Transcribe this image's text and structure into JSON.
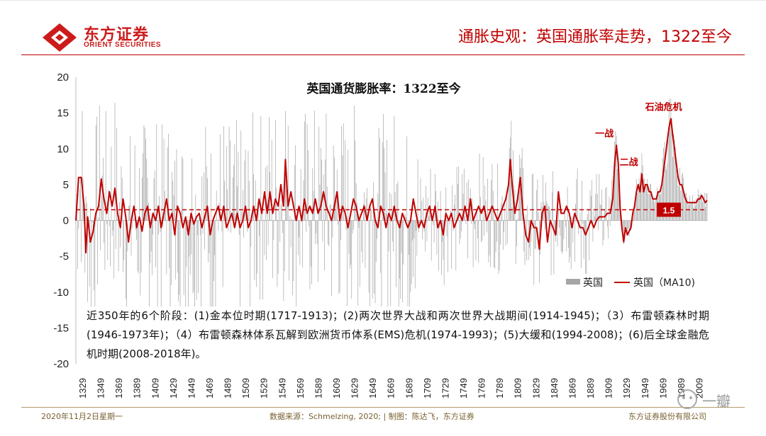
{
  "header": {
    "logo_cn": "东方证券",
    "logo_en": "ORIENT SECURITIES",
    "slide_title": "通胀史观：英国通胀率走势，1322至今"
  },
  "note": {
    "text": "近350年的6个阶段：(1)金本位时期(1717-1913)；(2)两次世界大战和两次世界大战期间(1914-1945)；（3）布雷顿森林时期(1946-1973年)；（4）布雷顿森林体系瓦解到欧洲货币体系(EMS)危机(1974-1993)；(5)大缓和(1994-2008)；(6)后全球金融危机时期(2008-2018年)。"
  },
  "footer": {
    "date": "2020年11月2日星期一",
    "source": "数据来源：Schmelzing, 2020; | 制图：陈达飞，东方证券",
    "company": "东方证券股份有限公司"
  },
  "watermark": {
    "text": "一瓣"
  },
  "colors": {
    "brand_red": "#cc1b1b",
    "series_line": "#c00000",
    "bars": "#a6a6a6",
    "ref_line": "#c00000"
  },
  "chart_data": {
    "type": "bar",
    "title": "英国通货膨胀率：1322至今",
    "xlabel": "",
    "ylabel": "",
    "ylim": [
      -20,
      20
    ],
    "y_ticks": [
      20,
      15,
      10,
      5,
      0,
      -5,
      -10,
      -15,
      -20
    ],
    "x_range": [
      1322,
      2018
    ],
    "x_tick_labels": [
      "1329",
      "1349",
      "1369",
      "1389",
      "1409",
      "1429",
      "1449",
      "1469",
      "1489",
      "1509",
      "1529",
      "1549",
      "1569",
      "1589",
      "1609",
      "1629",
      "1649",
      "1669",
      "1689",
      "1709",
      "1729",
      "1749",
      "1769",
      "1789",
      "1809",
      "1829",
      "1849",
      "1869",
      "1889",
      "1909",
      "1929",
      "1949",
      "1969",
      "1989",
      "2009"
    ],
    "legend": [
      "英国",
      "英国（MA10)"
    ],
    "legend_position": "bottom-right",
    "reference_line": {
      "value": 1.5,
      "label": "1.5"
    },
    "annotations": [
      {
        "text": "一战",
        "year": 1918,
        "value": 10.5
      },
      {
        "text": "二战",
        "year": 1945,
        "value": 6.5
      },
      {
        "text": "石油危机",
        "year": 1977,
        "value": 14.2
      }
    ],
    "series": [
      {
        "name": "英国（MA10)",
        "type": "line",
        "points": [
          [
            1322,
            0
          ],
          [
            1325,
            6
          ],
          [
            1328,
            6
          ],
          [
            1331,
            2
          ],
          [
            1333,
            -4.5
          ],
          [
            1335,
            0.5
          ],
          [
            1338,
            -3
          ],
          [
            1341,
            -1.5
          ],
          [
            1344,
            1
          ],
          [
            1347,
            2
          ],
          [
            1350,
            5.8
          ],
          [
            1353,
            3
          ],
          [
            1356,
            1
          ],
          [
            1359,
            4
          ],
          [
            1362,
            2
          ],
          [
            1365,
            4.5
          ],
          [
            1368,
            1
          ],
          [
            1371,
            -1
          ],
          [
            1374,
            3
          ],
          [
            1377,
            0.5
          ],
          [
            1380,
            -3
          ],
          [
            1383,
            0
          ],
          [
            1386,
            2
          ],
          [
            1389,
            -1
          ],
          [
            1392,
            0.5
          ],
          [
            1395,
            -1.5
          ],
          [
            1398,
            1
          ],
          [
            1401,
            2
          ],
          [
            1404,
            -1
          ],
          [
            1407,
            1
          ],
          [
            1410,
            0
          ],
          [
            1413,
            2
          ],
          [
            1416,
            -1
          ],
          [
            1419,
            1
          ],
          [
            1422,
            3
          ],
          [
            1425,
            0
          ],
          [
            1428,
            1
          ],
          [
            1431,
            -2
          ],
          [
            1434,
            2
          ],
          [
            1437,
            1
          ],
          [
            1440,
            -1
          ],
          [
            1443,
            0.5
          ],
          [
            1446,
            -2
          ],
          [
            1449,
            1
          ],
          [
            1452,
            -0.5
          ],
          [
            1455,
            0.5
          ],
          [
            1458,
            1
          ],
          [
            1461,
            -1
          ],
          [
            1464,
            0.5
          ],
          [
            1467,
            2
          ],
          [
            1470,
            -2
          ],
          [
            1473,
            0
          ],
          [
            1476,
            1
          ],
          [
            1479,
            2
          ],
          [
            1482,
            0
          ],
          [
            1485,
            2
          ],
          [
            1488,
            -1
          ],
          [
            1491,
            0
          ],
          [
            1494,
            1
          ],
          [
            1497,
            -1
          ],
          [
            1500,
            1
          ],
          [
            1503,
            -1
          ],
          [
            1506,
            0
          ],
          [
            1509,
            2
          ],
          [
            1512,
            -1
          ],
          [
            1515,
            0
          ],
          [
            1518,
            2
          ],
          [
            1521,
            0
          ],
          [
            1524,
            3
          ],
          [
            1527,
            1
          ],
          [
            1530,
            4
          ],
          [
            1533,
            1
          ],
          [
            1536,
            4
          ],
          [
            1539,
            1
          ],
          [
            1542,
            3
          ],
          [
            1545,
            2
          ],
          [
            1548,
            5
          ],
          [
            1551,
            2
          ],
          [
            1553,
            8.5
          ],
          [
            1556,
            2
          ],
          [
            1559,
            4
          ],
          [
            1562,
            2
          ],
          [
            1565,
            0
          ],
          [
            1568,
            2
          ],
          [
            1571,
            0
          ],
          [
            1574,
            3
          ],
          [
            1577,
            1
          ],
          [
            1580,
            2
          ],
          [
            1583,
            1
          ],
          [
            1586,
            3
          ],
          [
            1589,
            1
          ],
          [
            1592,
            2
          ],
          [
            1595,
            4
          ],
          [
            1598,
            2
          ],
          [
            1601,
            1
          ],
          [
            1604,
            0
          ],
          [
            1607,
            2
          ],
          [
            1610,
            4
          ],
          [
            1613,
            0
          ],
          [
            1616,
            2
          ],
          [
            1619,
            1
          ],
          [
            1622,
            -1
          ],
          [
            1625,
            1
          ],
          [
            1628,
            3
          ],
          [
            1631,
            2
          ],
          [
            1634,
            0
          ],
          [
            1637,
            1
          ],
          [
            1640,
            2
          ],
          [
            1643,
            0
          ],
          [
            1646,
            2
          ],
          [
            1649,
            3
          ],
          [
            1652,
            0
          ],
          [
            1655,
            -1
          ],
          [
            1658,
            2
          ],
          [
            1661,
            1
          ],
          [
            1664,
            -1
          ],
          [
            1667,
            1
          ],
          [
            1670,
            0
          ],
          [
            1673,
            2
          ],
          [
            1676,
            0
          ],
          [
            1679,
            -1
          ],
          [
            1682,
            1
          ],
          [
            1685,
            0
          ],
          [
            1688,
            -1
          ],
          [
            1691,
            0
          ],
          [
            1694,
            3
          ],
          [
            1697,
            1
          ],
          [
            1700,
            -1
          ],
          [
            1703,
            0
          ],
          [
            1706,
            -1
          ],
          [
            1709,
            1
          ],
          [
            1712,
            2
          ],
          [
            1715,
            0
          ],
          [
            1718,
            2
          ],
          [
            1721,
            -1
          ],
          [
            1724,
            0
          ],
          [
            1727,
            -2
          ],
          [
            1730,
            1
          ],
          [
            1733,
            0
          ],
          [
            1736,
            1
          ],
          [
            1739,
            -1
          ],
          [
            1742,
            0
          ],
          [
            1745,
            1
          ],
          [
            1748,
            0
          ],
          [
            1751,
            2
          ],
          [
            1754,
            0
          ],
          [
            1757,
            3
          ],
          [
            1760,
            0
          ],
          [
            1763,
            1
          ],
          [
            1766,
            2
          ],
          [
            1769,
            1
          ],
          [
            1772,
            2
          ],
          [
            1775,
            0
          ],
          [
            1778,
            1
          ],
          [
            1781,
            2
          ],
          [
            1784,
            1
          ],
          [
            1787,
            0
          ],
          [
            1790,
            1
          ],
          [
            1793,
            2
          ],
          [
            1796,
            3
          ],
          [
            1799,
            5
          ],
          [
            1801,
            8.5
          ],
          [
            1803,
            5
          ],
          [
            1806,
            1
          ],
          [
            1809,
            3
          ],
          [
            1812,
            6
          ],
          [
            1815,
            1
          ],
          [
            1818,
            -2
          ],
          [
            1821,
            -3
          ],
          [
            1824,
            0
          ],
          [
            1827,
            -1
          ],
          [
            1830,
            -1
          ],
          [
            1833,
            -4
          ],
          [
            1836,
            1
          ],
          [
            1839,
            2
          ],
          [
            1842,
            -3
          ],
          [
            1845,
            0
          ],
          [
            1848,
            -1
          ],
          [
            1851,
            -2
          ],
          [
            1854,
            4
          ],
          [
            1857,
            1
          ],
          [
            1860,
            1
          ],
          [
            1863,
            2
          ],
          [
            1866,
            1
          ],
          [
            1869,
            -1
          ],
          [
            1872,
            1
          ],
          [
            1875,
            0
          ],
          [
            1878,
            -1
          ],
          [
            1881,
            -1
          ],
          [
            1884,
            -2
          ],
          [
            1887,
            -1
          ],
          [
            1890,
            0
          ],
          [
            1893,
            -1
          ],
          [
            1896,
            0
          ],
          [
            1899,
            0.5
          ],
          [
            1902,
            0.5
          ],
          [
            1905,
            0.5
          ],
          [
            1908,
            1
          ],
          [
            1911,
            1
          ],
          [
            1914,
            3
          ],
          [
            1916,
            8
          ],
          [
            1918,
            10.5
          ],
          [
            1920,
            8
          ],
          [
            1922,
            2
          ],
          [
            1924,
            -1
          ],
          [
            1926,
            -3
          ],
          [
            1928,
            -1
          ],
          [
            1930,
            -2
          ],
          [
            1932,
            -1.5
          ],
          [
            1934,
            -1
          ],
          [
            1936,
            1
          ],
          [
            1938,
            2
          ],
          [
            1940,
            4
          ],
          [
            1942,
            5
          ],
          [
            1944,
            4
          ],
          [
            1946,
            6.5
          ],
          [
            1948,
            4
          ],
          [
            1950,
            5
          ],
          [
            1952,
            5
          ],
          [
            1954,
            4
          ],
          [
            1956,
            4
          ],
          [
            1958,
            3
          ],
          [
            1960,
            3
          ],
          [
            1962,
            3
          ],
          [
            1964,
            4
          ],
          [
            1966,
            4
          ],
          [
            1968,
            5
          ],
          [
            1970,
            7
          ],
          [
            1972,
            9
          ],
          [
            1974,
            11
          ],
          [
            1976,
            13
          ],
          [
            1978,
            14.2
          ],
          [
            1980,
            12
          ],
          [
            1982,
            10
          ],
          [
            1984,
            8
          ],
          [
            1986,
            6
          ],
          [
            1988,
            5
          ],
          [
            1990,
            5
          ],
          [
            1992,
            4
          ],
          [
            1994,
            3
          ],
          [
            1996,
            2.5
          ],
          [
            1998,
            2.5
          ],
          [
            2000,
            2.5
          ],
          [
            2002,
            2.5
          ],
          [
            2004,
            2.5
          ],
          [
            2006,
            2.5
          ],
          [
            2008,
            3
          ],
          [
            2010,
            3
          ],
          [
            2012,
            3.5
          ],
          [
            2014,
            3
          ],
          [
            2016,
            2.5
          ],
          [
            2018,
            2.8
          ]
        ]
      }
    ]
  }
}
